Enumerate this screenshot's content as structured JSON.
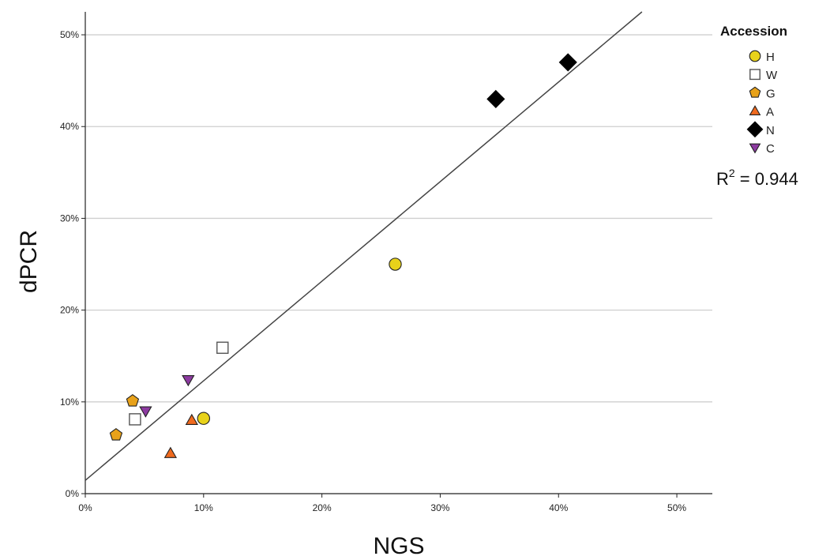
{
  "chart_data": {
    "type": "scatter",
    "title": "",
    "xlabel": "NGS",
    "ylabel": "dPCR",
    "xlim": [
      0,
      0.53
    ],
    "ylim": [
      0,
      0.525
    ],
    "x_ticks": [
      0,
      0.1,
      0.2,
      0.3,
      0.4,
      0.5
    ],
    "y_ticks": [
      0,
      0.1,
      0.2,
      0.3,
      0.4,
      0.5
    ],
    "x_tick_labels": [
      "0%",
      "10%",
      "20%",
      "30%",
      "40%",
      "50%"
    ],
    "y_tick_labels": [
      "0%",
      "10%",
      "20%",
      "30%",
      "40%",
      "50%"
    ],
    "grid": "horizontal",
    "legend": {
      "title": "Accession",
      "placement": "right"
    },
    "series": [
      {
        "name": "H",
        "marker": "circle",
        "color": "#e8d21a",
        "points": [
          [
            0.262,
            0.25
          ],
          [
            0.1,
            0.082
          ]
        ]
      },
      {
        "name": "W",
        "marker": "square",
        "color": "#ffffff",
        "points": [
          [
            0.116,
            0.159
          ],
          [
            0.042,
            0.081
          ]
        ]
      },
      {
        "name": "G",
        "marker": "pentagon",
        "color": "#e8a21a",
        "points": [
          [
            0.04,
            0.101
          ],
          [
            0.026,
            0.064
          ]
        ]
      },
      {
        "name": "A",
        "marker": "triangle-up",
        "color": "#f06a1e",
        "points": [
          [
            0.09,
            0.08
          ],
          [
            0.072,
            0.044
          ]
        ]
      },
      {
        "name": "N",
        "marker": "diamond",
        "color": "#000000",
        "points": [
          [
            0.347,
            0.43
          ],
          [
            0.408,
            0.47
          ]
        ]
      },
      {
        "name": "C",
        "marker": "triangle-down",
        "color": "#8c3aa0",
        "points": [
          [
            0.087,
            0.124
          ],
          [
            0.051,
            0.09
          ]
        ]
      }
    ],
    "fit_line": {
      "intercept": 0.0145,
      "slope": 1.085
    },
    "annotation": {
      "prefix": "R",
      "superscript": "2",
      "text": " = 0.944"
    }
  }
}
